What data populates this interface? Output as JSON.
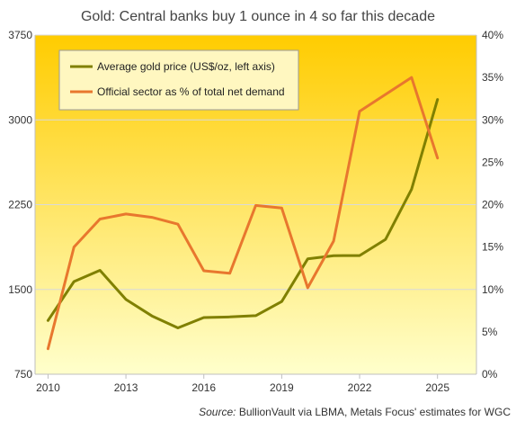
{
  "chart_data": {
    "type": "line",
    "title": "Gold: Central banks buy 1 ounce in 4 so far this decade",
    "source_label": "Source:",
    "source_text": "BullionVault via LBMA, Metals Focus' estimates for WGC",
    "x": [
      2010,
      2011,
      2012,
      2013,
      2014,
      2015,
      2016,
      2017,
      2018,
      2019,
      2020,
      2021,
      2022,
      2023,
      2024,
      2025
    ],
    "x_ticks": [
      "2010",
      "2013",
      "2016",
      "2019",
      "2022",
      "2025"
    ],
    "xlim": [
      2009.5,
      2026.5
    ],
    "y_left": {
      "ticks": [
        "750",
        "1500",
        "2250",
        "3000",
        "3750"
      ],
      "lim": [
        750,
        3750
      ]
    },
    "y_right": {
      "ticks": [
        "0%",
        "5%",
        "10%",
        "15%",
        "20%",
        "25%",
        "30%",
        "35%",
        "40%"
      ],
      "lim": [
        0,
        40
      ]
    },
    "grid": true,
    "legend_position": "top-left",
    "series": [
      {
        "name": "Average gold price (US$/oz, left axis)",
        "axis": "left",
        "color": "#808000",
        "values": [
          1225,
          1570,
          1669,
          1411,
          1266,
          1160,
          1251,
          1257,
          1268,
          1393,
          1770,
          1799,
          1800,
          1943,
          2386,
          3180
        ]
      },
      {
        "name": "Official sector as % of total net demand",
        "axis": "right",
        "color": "#E8772E",
        "x": [
          2010,
          2011,
          2012,
          2013,
          2014,
          2015,
          2016,
          2017,
          2018,
          2019,
          2020,
          2021,
          2022,
          2023,
          2024,
          2025
        ],
        "values": [
          3.0,
          15.0,
          18.3,
          18.9,
          18.5,
          17.7,
          12.2,
          11.9,
          19.9,
          19.6,
          10.2,
          15.7,
          31.0,
          null,
          35.0,
          25.5
        ]
      }
    ],
    "colors": {
      "plot_top": "#FFCC00",
      "plot_bottom": "#FFFFCC",
      "gridline": "#D9D9D9",
      "axis": "#BFBFBF"
    }
  }
}
